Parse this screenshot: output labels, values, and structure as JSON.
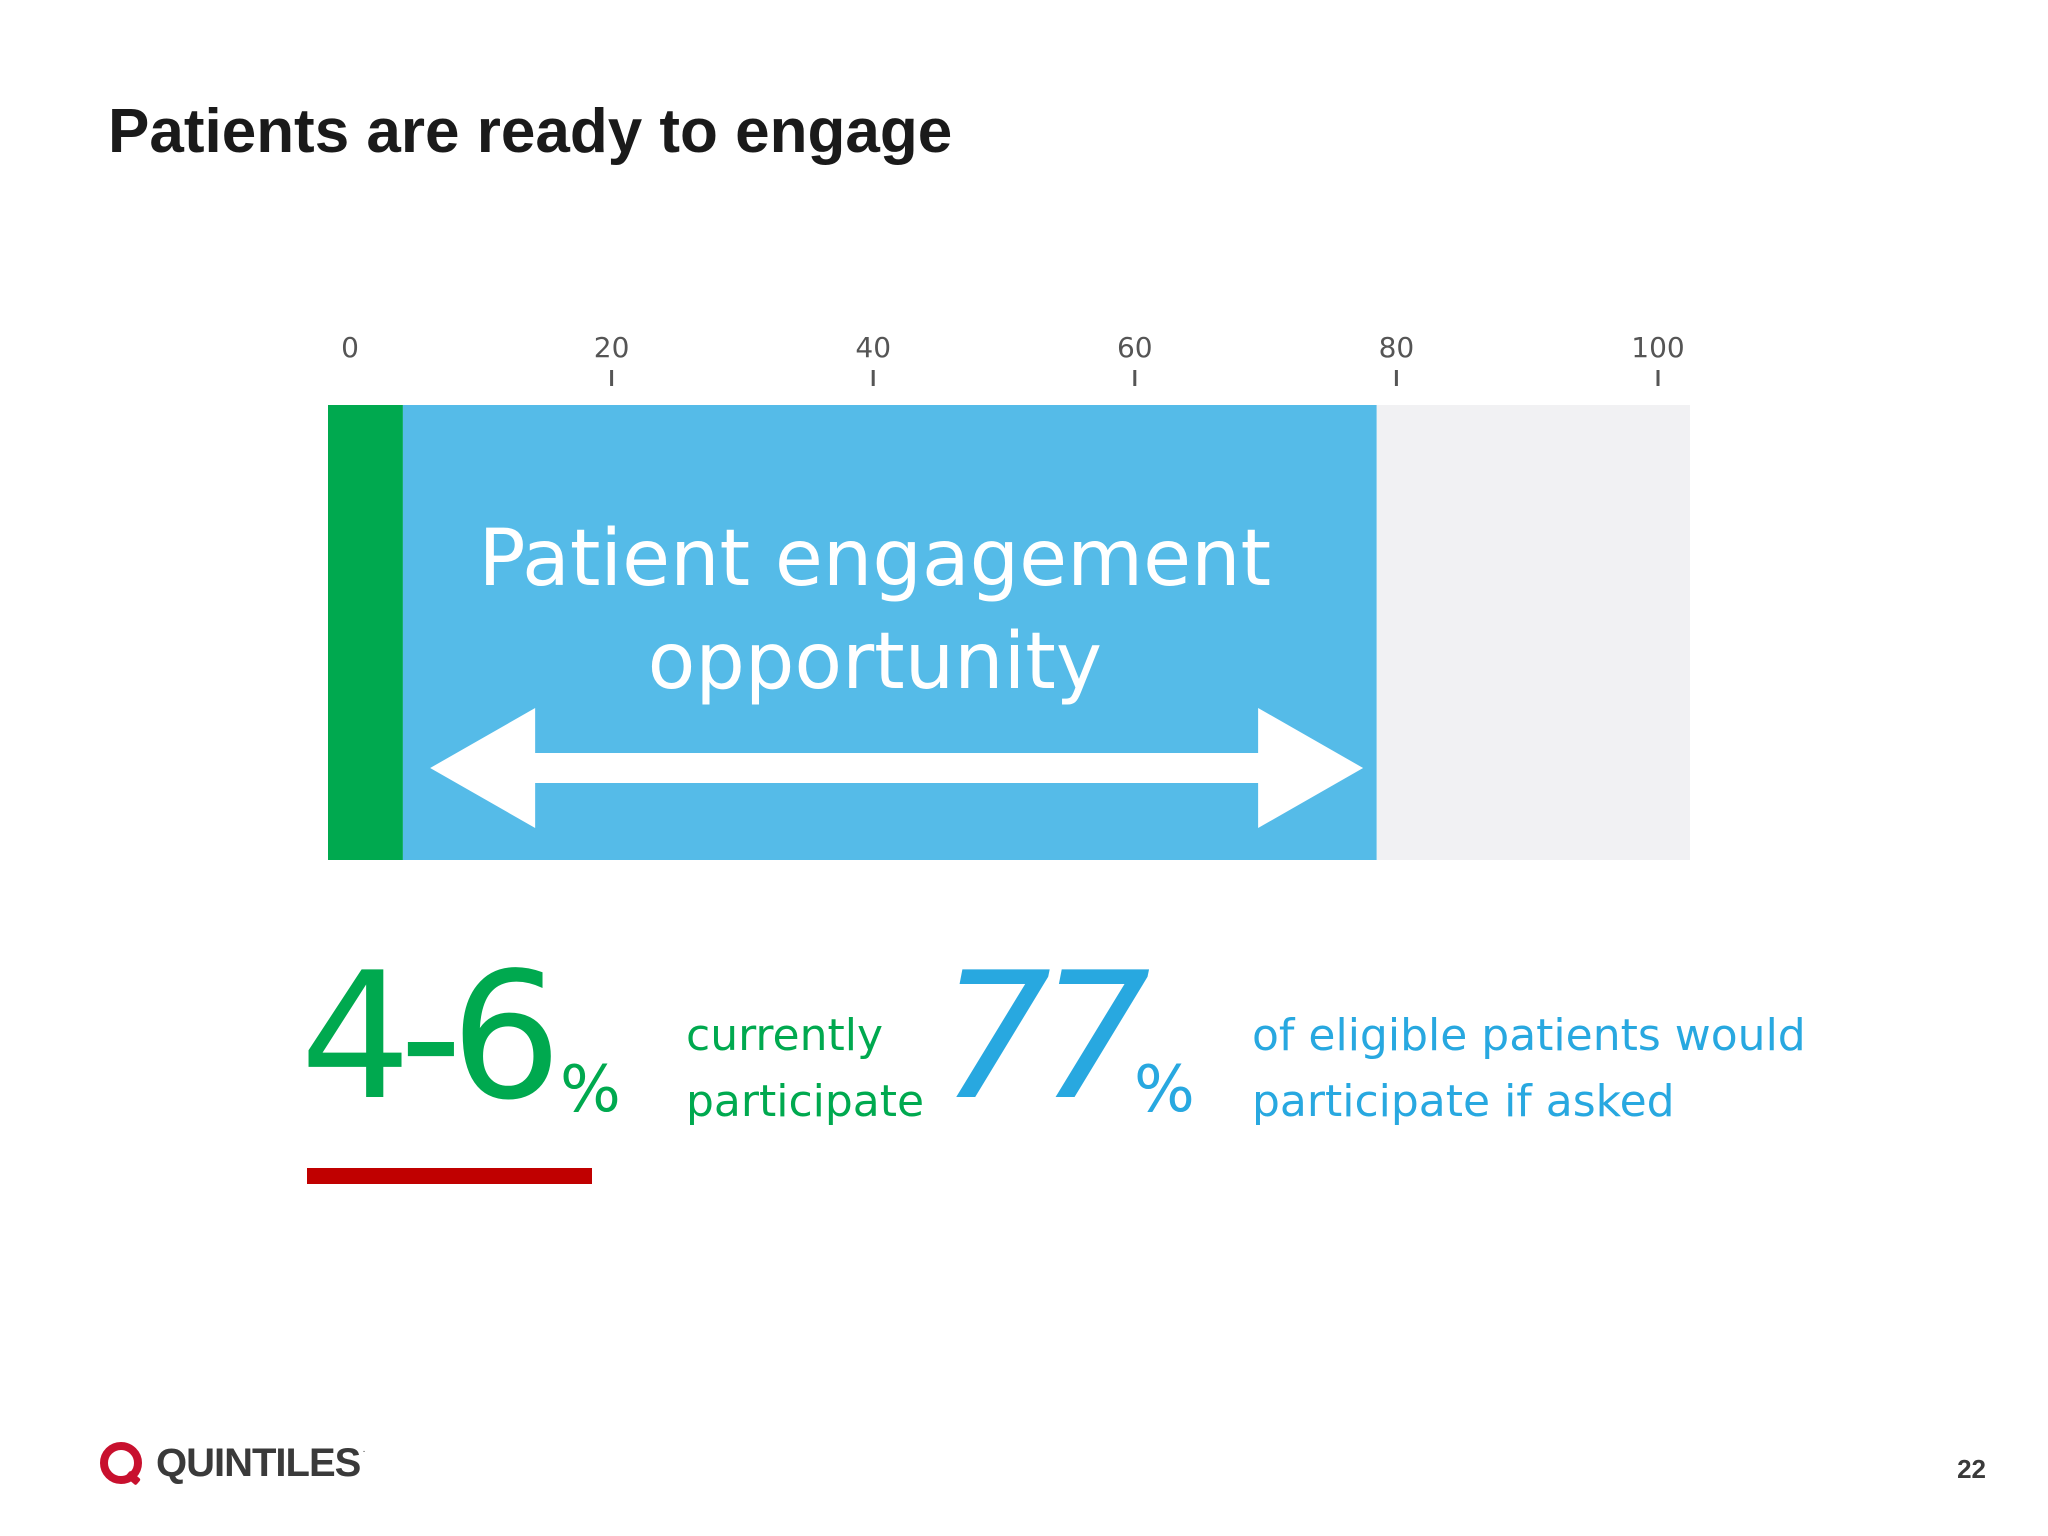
{
  "slide": {
    "title": "Patients are ready to engage",
    "page_number": "22"
  },
  "chart_data": {
    "type": "bar",
    "orientation": "horizontal",
    "xlim": [
      0,
      100
    ],
    "tick_values": [
      0,
      20,
      40,
      60,
      80,
      100
    ],
    "tick_labels": [
      "0",
      "20",
      "40",
      "60",
      "80",
      "100"
    ],
    "segments": [
      {
        "label": "currently participate",
        "start": 0,
        "end": 5.5,
        "color": "#00a94f"
      },
      {
        "label": "Patient engagement opportunity",
        "start": 5.5,
        "end": 77,
        "color": "#55bbe8"
      },
      {
        "label": "",
        "start": 77,
        "end": 100,
        "color": "#f1f1f3"
      }
    ],
    "annotation": {
      "lines": [
        "Patient engagement",
        "opportunity"
      ],
      "arrow": "double-headed",
      "arrow_from": 7.5,
      "arrow_to": 76
    }
  },
  "stats": {
    "current": {
      "value": "4-6",
      "unit": "%",
      "caption_lines": [
        "currently",
        "participate"
      ],
      "color": "#00a94f",
      "underline_color": "#c00000"
    },
    "potential": {
      "value": "77",
      "unit": "%",
      "caption_lines": [
        "of eligible patients would",
        "participate if asked"
      ],
      "color": "#28a8e0"
    }
  },
  "logo": {
    "name": "QUINTILES",
    "trademark": "·",
    "ring_color": "#c8102e"
  }
}
